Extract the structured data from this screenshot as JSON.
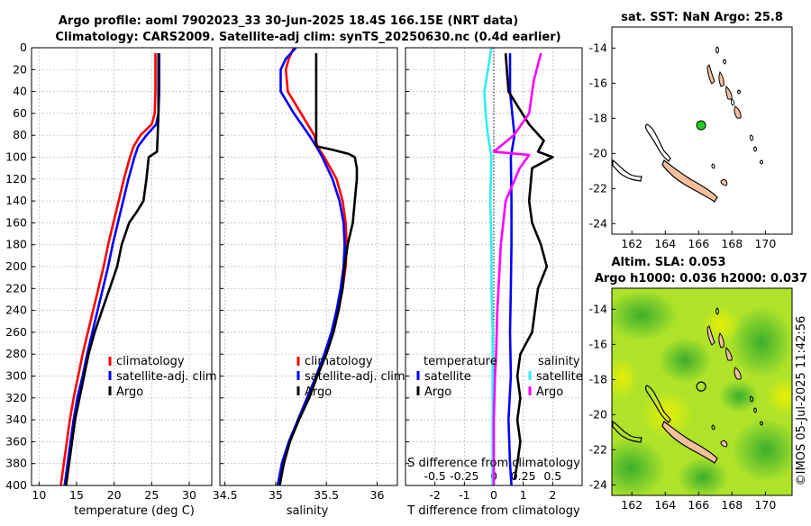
{
  "header": {
    "title_line1": "Argo profile: aoml 7902023_33 30-Jun-2025 18.4S 166.15E (NRT data)",
    "title_line2": "Climatology: CARS2009. Satellite-adj clim: synTS_20250630.nc (0.4d earlier)"
  },
  "colors": {
    "climatology": "#ff0000",
    "satellite": "#0000ff",
    "argo": "#000000",
    "sat_salinity": "#33eeee",
    "argo_salinity": "#ff00ff",
    "land": "#f4c09c",
    "marker": "#22cc22"
  },
  "depth_axis": {
    "range": [
      0,
      400
    ],
    "ticks": [
      0,
      20,
      40,
      60,
      80,
      100,
      120,
      140,
      160,
      180,
      200,
      220,
      240,
      260,
      280,
      300,
      320,
      340,
      360,
      380,
      400
    ]
  },
  "chart_data": [
    {
      "id": "temperature",
      "type": "line",
      "xlabel": "temperature (deg C)",
      "xlim": [
        9,
        33
      ],
      "xticks": [
        10,
        15,
        20,
        25,
        30
      ],
      "ylim": [
        0,
        400
      ],
      "legend": [
        "climatology",
        "satellite-adj. clim",
        "Argo"
      ],
      "series": [
        {
          "name": "climatology",
          "color": "#ff0000",
          "depth": [
            5,
            20,
            40,
            60,
            70,
            80,
            90,
            100,
            120,
            140,
            160,
            180,
            200,
            220,
            240,
            260,
            280,
            300,
            320,
            340,
            360,
            380,
            400
          ],
          "values": [
            25.5,
            25.5,
            25.5,
            25.4,
            25.0,
            23.5,
            22.6,
            22.1,
            21.3,
            20.6,
            19.9,
            19.2,
            18.6,
            17.9,
            17.2,
            16.5,
            15.8,
            15.2,
            14.6,
            14.1,
            13.7,
            13.3,
            12.9
          ]
        },
        {
          "name": "satellite-adj. clim",
          "color": "#0000ff",
          "depth": [
            5,
            20,
            40,
            60,
            70,
            80,
            90,
            100,
            120,
            140,
            160,
            180,
            200,
            220,
            240,
            260,
            280,
            300,
            320,
            340,
            360,
            380,
            400
          ],
          "values": [
            26.0,
            26.0,
            26.0,
            25.9,
            25.6,
            24.3,
            23.2,
            22.7,
            21.9,
            21.2,
            20.5,
            19.8,
            19.2,
            18.5,
            17.8,
            17.1,
            16.4,
            15.8,
            15.1,
            14.6,
            14.2,
            13.8,
            13.4
          ]
        },
        {
          "name": "Argo",
          "color": "#000000",
          "depth": [
            5,
            20,
            40,
            60,
            80,
            95,
            100,
            120,
            140,
            150,
            160,
            180,
            200,
            220,
            240,
            260,
            280,
            300,
            320,
            340,
            360,
            380,
            400
          ],
          "values": [
            25.9,
            25.9,
            25.9,
            25.9,
            25.8,
            25.7,
            24.6,
            24.3,
            23.9,
            23.0,
            22.0,
            21.0,
            20.4,
            19.4,
            18.4,
            17.4,
            16.6,
            16.0,
            15.4,
            14.8,
            14.4,
            14.0,
            13.6
          ]
        }
      ]
    },
    {
      "id": "salinity",
      "type": "line",
      "xlabel": "salinity",
      "xlim": [
        34.45,
        36.2
      ],
      "xticks": [
        34.5,
        35,
        35.5,
        36
      ],
      "xticklabels": [
        "34.5",
        "35",
        "35.5",
        "36"
      ],
      "ylim": [
        0,
        400
      ],
      "legend": [
        "climatology",
        "satellite-adj. clim",
        "Argo"
      ],
      "series": [
        {
          "name": "climatology",
          "color": "#ff0000",
          "depth": [
            0,
            10,
            20,
            40,
            60,
            80,
            90,
            100,
            120,
            140,
            160,
            180,
            200,
            220,
            240,
            260,
            280,
            300,
            320,
            340,
            360,
            380,
            400
          ],
          "values": [
            35.18,
            35.13,
            35.1,
            35.12,
            35.25,
            35.38,
            35.41,
            35.48,
            35.6,
            35.66,
            35.69,
            35.7,
            35.69,
            35.66,
            35.62,
            35.56,
            35.49,
            35.4,
            35.31,
            35.22,
            35.14,
            35.08,
            35.04
          ]
        },
        {
          "name": "satellite-adj. clim",
          "color": "#0000ff",
          "depth": [
            0,
            10,
            20,
            40,
            60,
            80,
            90,
            100,
            120,
            140,
            160,
            180,
            200,
            220,
            240,
            260,
            280,
            300,
            320,
            340,
            360,
            380,
            400
          ],
          "values": [
            35.2,
            35.1,
            35.05,
            35.05,
            35.18,
            35.33,
            35.4,
            35.46,
            35.56,
            35.63,
            35.67,
            35.68,
            35.67,
            35.64,
            35.6,
            35.55,
            35.48,
            35.4,
            35.31,
            35.22,
            35.13,
            35.06,
            35.02
          ]
        },
        {
          "name": "Argo",
          "color": "#000000",
          "depth": [
            5,
            90,
            93,
            97,
            100,
            110,
            120,
            140,
            160,
            180,
            200,
            220,
            240,
            260,
            280,
            300,
            320,
            340,
            360,
            380,
            400
          ],
          "values": [
            35.4,
            35.4,
            35.55,
            35.72,
            35.78,
            35.8,
            35.8,
            35.78,
            35.76,
            35.71,
            35.68,
            35.66,
            35.62,
            35.57,
            35.5,
            35.41,
            35.33,
            35.23,
            35.14,
            35.08,
            35.04
          ]
        }
      ]
    },
    {
      "id": "differences",
      "type": "line",
      "xlabel": "T difference from climatology",
      "xlabel_top": "S difference from climatology",
      "xlim": [
        -3,
        3
      ],
      "xticks": [
        -2,
        -1,
        0,
        1,
        2
      ],
      "xticks_top": [
        -0.5,
        -0.25,
        0,
        0.25,
        0.5
      ],
      "xticklabels_top": [
        "-0.5",
        "-0.25",
        "0",
        "0.25",
        "0.5"
      ],
      "ylim": [
        0,
        400
      ],
      "legend_temperature_title": "temperature",
      "legend_temperature": [
        "satellite",
        "Argo"
      ],
      "legend_salinity_title": "salinity",
      "legend_salinity": [
        "satellite",
        "Argo"
      ],
      "series": [
        {
          "name": "temperature satellite",
          "color": "#0000ff",
          "axis": "T",
          "depth": [
            5,
            40,
            80,
            100,
            140,
            180,
            220,
            260,
            300,
            340,
            380,
            400
          ],
          "values": [
            0.55,
            0.55,
            0.7,
            0.58,
            0.6,
            0.6,
            0.58,
            0.55,
            0.58,
            0.5,
            0.55,
            0.6
          ]
        },
        {
          "name": "temperature Argo",
          "color": "#000000",
          "axis": "T",
          "depth": [
            5,
            40,
            70,
            85,
            95,
            100,
            110,
            140,
            160,
            180,
            200,
            220,
            240,
            260,
            280,
            300,
            320,
            340,
            360,
            380,
            395
          ],
          "values": [
            0.4,
            0.5,
            1.2,
            1.7,
            1.5,
            2.0,
            1.3,
            1.2,
            1.3,
            1.6,
            1.8,
            1.5,
            1.4,
            1.3,
            0.9,
            0.8,
            0.9,
            0.8,
            0.9,
            0.8,
            0.7
          ]
        },
        {
          "name": "salinity satellite",
          "color": "#33eeee",
          "axis": "S",
          "depth": [
            0,
            20,
            40,
            60,
            80,
            100,
            140,
            180,
            220,
            260,
            300,
            340,
            380,
            400
          ],
          "values": [
            -0.02,
            -0.05,
            -0.08,
            -0.07,
            -0.05,
            -0.02,
            -0.03,
            -0.02,
            -0.02,
            -0.01,
            -0.01,
            -0.01,
            -0.01,
            -0.01
          ]
        },
        {
          "name": "salinity Argo",
          "color": "#ff00ff",
          "axis": "S",
          "depth": [
            5,
            30,
            60,
            80,
            95,
            98,
            110,
            140,
            160,
            180,
            200,
            240,
            280,
            300,
            340,
            380,
            400
          ],
          "values": [
            0.4,
            0.34,
            0.3,
            0.17,
            0.0,
            0.3,
            0.22,
            0.1,
            0.08,
            0.06,
            0.05,
            0.03,
            0.02,
            0.01,
            0.0,
            0.0,
            0.0
          ]
        }
      ]
    }
  ],
  "sst_map": {
    "title": "sat. SST: NaN Argo: 25.8",
    "xticks": [
      162,
      164,
      166,
      168,
      170
    ],
    "yticks": [
      -14,
      -16,
      -18,
      -20,
      -22,
      -24
    ],
    "marker": {
      "lon": 166.15,
      "lat": -18.4
    }
  },
  "sla_map": {
    "title_line1": "Altim. SLA: 0.053",
    "title_line2": "Argo h1000: 0.036 h2000: 0.037",
    "xticks": [
      162,
      164,
      166,
      168,
      170
    ],
    "yticks": [
      -14,
      -16,
      -18,
      -20,
      -22,
      -24
    ],
    "marker": {
      "lon": 166.15,
      "lat": -18.4
    }
  },
  "footer": {
    "credit": "©IMOS 05-Jul-2025 11:42:56"
  }
}
